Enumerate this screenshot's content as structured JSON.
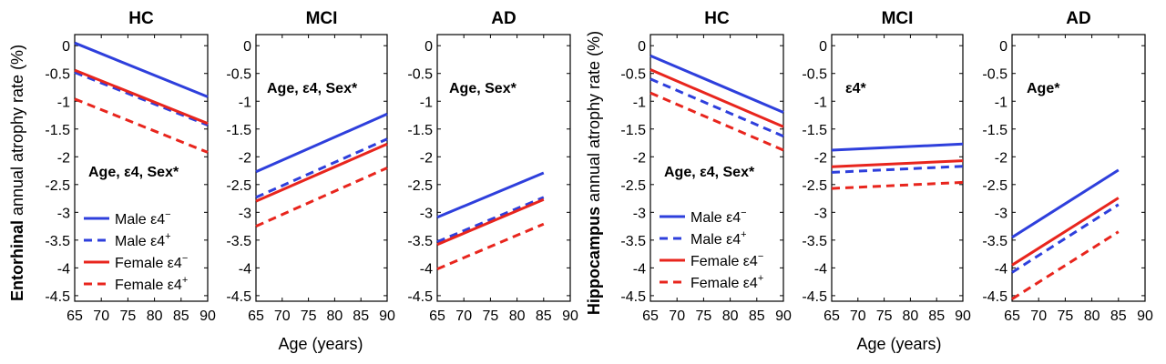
{
  "figure": {
    "groups": [
      {
        "ylabel_bold": "Entorhinal",
        "ylabel_rest": " annual atrophy rate (%)",
        "xlabel": "Age (years)"
      },
      {
        "ylabel_bold": "Hippocampus",
        "ylabel_rest": " annual atrophy rate (%)",
        "xlabel": "Age (years)"
      }
    ]
  },
  "series_styles": [
    {
      "color": "#2e3fdc",
      "dash": "solid"
    },
    {
      "color": "#2e3fdc",
      "dash": "dashed"
    },
    {
      "color": "#e8251d",
      "dash": "solid"
    },
    {
      "color": "#e8251d",
      "dash": "dashed"
    }
  ],
  "legend": {
    "entries": [
      {
        "base": "Male ε4",
        "sup": "−"
      },
      {
        "base": "Male ε4",
        "sup": "+"
      },
      {
        "base": "Female ε4",
        "sup": "−"
      },
      {
        "base": "Female ε4",
        "sup": "+"
      }
    ]
  },
  "chart_data": [
    {
      "type": "line",
      "title": "HC",
      "annotation": "Age, ε4, Sex*",
      "xlim": [
        65,
        90
      ],
      "ylim": [
        -4.6,
        0.2
      ],
      "xticks": [
        65,
        70,
        75,
        80,
        85,
        90
      ],
      "yticks": [
        0,
        -0.5,
        -1,
        -1.5,
        -2,
        -2.5,
        -3,
        -3.5,
        -4,
        -4.5
      ],
      "yticklabels": [
        "0",
        "-0.5",
        "-1",
        "-1.5",
        "-2",
        "-2.5",
        "-3",
        "-3.5",
        "-4",
        "-4.5"
      ],
      "series": [
        {
          "name": "Male ε4−",
          "x": [
            65,
            90
          ],
          "y": [
            0.05,
            -0.92
          ]
        },
        {
          "name": "Male ε4+",
          "x": [
            65,
            90
          ],
          "y": [
            -0.48,
            -1.43
          ]
        },
        {
          "name": "Female ε4−",
          "x": [
            65,
            90
          ],
          "y": [
            -0.44,
            -1.4
          ]
        },
        {
          "name": "Female ε4+",
          "x": [
            65,
            90
          ],
          "y": [
            -0.96,
            -1.92
          ]
        }
      ]
    },
    {
      "type": "line",
      "title": "MCI",
      "annotation": "Age, ε4, Sex*",
      "xlim": [
        65,
        90
      ],
      "ylim": [
        -4.6,
        0.2
      ],
      "xticks": [
        65,
        70,
        75,
        80,
        85,
        90
      ],
      "yticks": [
        0,
        -0.5,
        -1,
        -1.5,
        -2,
        -2.5,
        -3,
        -3.5,
        -4,
        -4.5
      ],
      "yticklabels": [
        "0",
        "-0.5",
        "-1",
        "-1.5",
        "-2",
        "-2.5",
        "-3",
        "-3.5",
        "-4",
        "-4.5"
      ],
      "series": [
        {
          "name": "Male ε4−",
          "x": [
            65,
            90
          ],
          "y": [
            -2.27,
            -1.23
          ]
        },
        {
          "name": "Male ε4+",
          "x": [
            65,
            90
          ],
          "y": [
            -2.73,
            -1.68
          ]
        },
        {
          "name": "Female ε4−",
          "x": [
            65,
            90
          ],
          "y": [
            -2.8,
            -1.77
          ]
        },
        {
          "name": "Female ε4+",
          "x": [
            65,
            90
          ],
          "y": [
            -3.25,
            -2.2
          ]
        }
      ]
    },
    {
      "type": "line",
      "title": "AD",
      "annotation": "Age, Sex*",
      "xlim": [
        65,
        90
      ],
      "ylim": [
        -4.6,
        0.2
      ],
      "xticks": [
        65,
        70,
        75,
        80,
        85,
        90
      ],
      "yticks": [
        0,
        -0.5,
        -1,
        -1.5,
        -2,
        -2.5,
        -3,
        -3.5,
        -4,
        -4.5
      ],
      "yticklabels": [
        "0",
        "-0.5",
        "-1",
        "-1.5",
        "-2",
        "-2.5",
        "-3",
        "-3.5",
        "-4",
        "-4.5"
      ],
      "series": [
        {
          "name": "Male ε4−",
          "x": [
            65,
            85
          ],
          "y": [
            -3.09,
            -2.29
          ]
        },
        {
          "name": "Male ε4+",
          "x": [
            65,
            85
          ],
          "y": [
            -3.53,
            -2.73
          ]
        },
        {
          "name": "Female ε4−",
          "x": [
            65,
            85
          ],
          "y": [
            -3.58,
            -2.77
          ]
        },
        {
          "name": "Female ε4+",
          "x": [
            65,
            85
          ],
          "y": [
            -4.02,
            -3.21
          ]
        }
      ]
    },
    {
      "type": "line",
      "title": "HC",
      "annotation": "Age, ε4, Sex*",
      "xlim": [
        65,
        90
      ],
      "ylim": [
        -4.6,
        0.2
      ],
      "xticks": [
        65,
        70,
        75,
        80,
        85,
        90
      ],
      "yticks": [
        0,
        -0.5,
        -1,
        -1.5,
        -2,
        -2.5,
        -3,
        -3.5,
        -4,
        -4.5
      ],
      "yticklabels": [
        "0",
        "-0.5",
        "-1",
        "-1.5",
        "-2",
        "-2.5",
        "-3",
        "-3.5",
        "-4",
        "-4.5"
      ],
      "series": [
        {
          "name": "Male ε4−",
          "x": [
            65,
            90
          ],
          "y": [
            -0.18,
            -1.2
          ]
        },
        {
          "name": "Male ε4+",
          "x": [
            65,
            90
          ],
          "y": [
            -0.6,
            -1.63
          ]
        },
        {
          "name": "Female ε4−",
          "x": [
            65,
            90
          ],
          "y": [
            -0.43,
            -1.46
          ]
        },
        {
          "name": "Female ε4+",
          "x": [
            65,
            90
          ],
          "y": [
            -0.85,
            -1.88
          ]
        }
      ]
    },
    {
      "type": "line",
      "title": "MCI",
      "annotation": "ε4*",
      "xlim": [
        65,
        90
      ],
      "ylim": [
        -4.6,
        0.2
      ],
      "xticks": [
        65,
        70,
        75,
        80,
        85,
        90
      ],
      "yticks": [
        0,
        -0.5,
        -1,
        -1.5,
        -2,
        -2.5,
        -3,
        -3.5,
        -4,
        -4.5
      ],
      "yticklabels": [
        "0",
        "-0.5",
        "-1",
        "-1.5",
        "-2",
        "-2.5",
        "-3",
        "-3.5",
        "-4",
        "-4.5"
      ],
      "series": [
        {
          "name": "Male ε4−",
          "x": [
            65,
            90
          ],
          "y": [
            -1.88,
            -1.77
          ]
        },
        {
          "name": "Male ε4+",
          "x": [
            65,
            90
          ],
          "y": [
            -2.28,
            -2.17
          ]
        },
        {
          "name": "Female ε4−",
          "x": [
            65,
            90
          ],
          "y": [
            -2.18,
            -2.07
          ]
        },
        {
          "name": "Female ε4+",
          "x": [
            65,
            90
          ],
          "y": [
            -2.57,
            -2.46
          ]
        }
      ]
    },
    {
      "type": "line",
      "title": "AD",
      "annotation": "Age*",
      "xlim": [
        65,
        90
      ],
      "ylim": [
        -4.6,
        0.2
      ],
      "xticks": [
        65,
        70,
        75,
        80,
        85,
        90
      ],
      "yticks": [
        0,
        -0.5,
        -1,
        -1.5,
        -2,
        -2.5,
        -3,
        -3.5,
        -4,
        -4.5
      ],
      "yticklabels": [
        "0",
        "-0.5",
        "-1",
        "-1.5",
        "-2",
        "-2.5",
        "-3",
        "-3.5",
        "-4",
        "-4.5"
      ],
      "series": [
        {
          "name": "Male ε4−",
          "x": [
            65,
            85
          ],
          "y": [
            -3.45,
            -2.24
          ]
        },
        {
          "name": "Male ε4+",
          "x": [
            65,
            85
          ],
          "y": [
            -4.08,
            -2.86
          ]
        },
        {
          "name": "Female ε4−",
          "x": [
            65,
            85
          ],
          "y": [
            -3.95,
            -2.74
          ]
        },
        {
          "name": "Female ε4+",
          "x": [
            65,
            85
          ],
          "y": [
            -4.56,
            -3.35
          ]
        }
      ]
    }
  ]
}
